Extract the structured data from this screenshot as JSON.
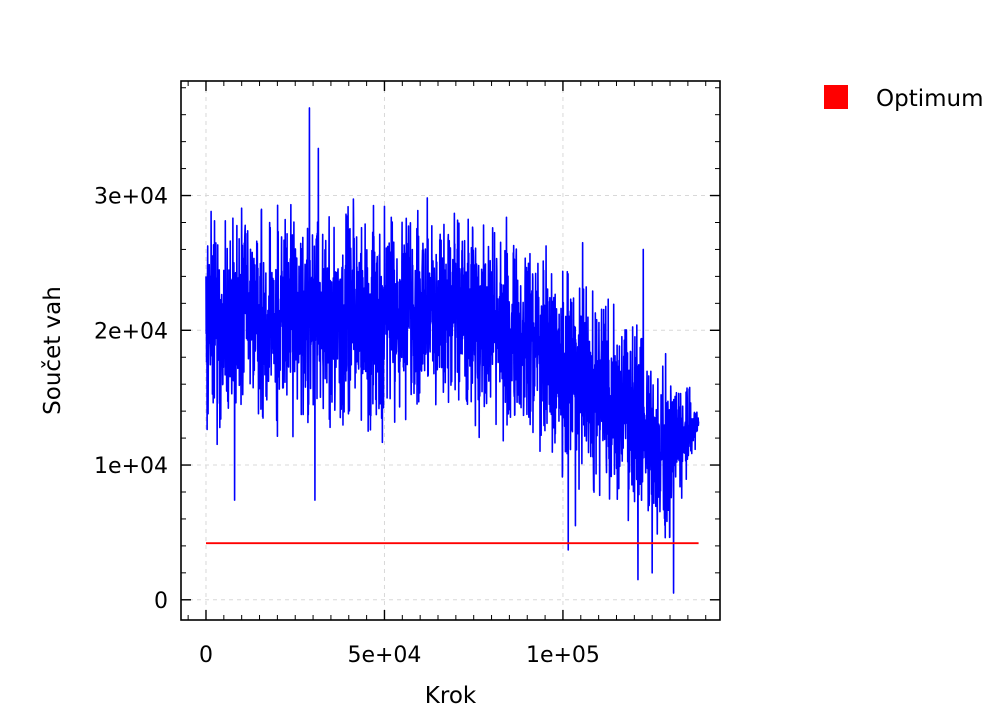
{
  "chart_data": {
    "type": "line",
    "xlabel": "Krok",
    "ylabel": "Součet vah",
    "xlim": [
      -7000,
      144000
    ],
    "ylim": [
      -1500,
      38500
    ],
    "x_ticks": [
      0,
      50000,
      100000
    ],
    "x_tick_labels": [
      "0",
      "5e+04",
      "1e+05"
    ],
    "y_ticks": [
      0,
      10000,
      20000,
      30000
    ],
    "y_tick_labels": [
      "0",
      "1e+04",
      "2e+04",
      "3e+04"
    ],
    "grid": true,
    "legend_position": "top-right outside",
    "series": [
      {
        "color": "#0000ff",
        "description": "noisy trace",
        "x_range": [
          0,
          138000
        ],
        "envelope_x": [
          0,
          5000,
          10000,
          20000,
          30000,
          40000,
          50000,
          60000,
          70000,
          80000,
          90000,
          100000,
          105000,
          110000,
          115000,
          120000,
          125000,
          130000,
          135000,
          138000
        ],
        "envelope_low": [
          11000,
          11000,
          11500,
          11500,
          11000,
          11000,
          11500,
          12000,
          12000,
          11500,
          11000,
          8000,
          7000,
          6000,
          5000,
          4500,
          2500,
          2500,
          8500,
          12000
        ],
        "envelope_high": [
          29000,
          30000,
          30500,
          30000,
          31000,
          30000,
          31000,
          31000,
          30000,
          29000,
          28000,
          26000,
          25000,
          24500,
          24000,
          22000,
          19000,
          20000,
          17000,
          14500
        ],
        "center": [
          20000,
          21000,
          21000,
          20500,
          21000,
          20500,
          21000,
          21500,
          21000,
          20000,
          19500,
          17500,
          16500,
          15500,
          14500,
          13500,
          11000,
          11000,
          12500,
          13500
        ],
        "spikes": [
          {
            "x": 29000,
            "y": 36500
          },
          {
            "x": 31500,
            "y": 33500
          },
          {
            "x": 30500,
            "y": 7400
          },
          {
            "x": 8000,
            "y": 7400
          },
          {
            "x": 101500,
            "y": 3700
          },
          {
            "x": 103500,
            "y": 5500
          },
          {
            "x": 121000,
            "y": 1500
          },
          {
            "x": 131000,
            "y": 500
          },
          {
            "x": 125000,
            "y": 2000
          },
          {
            "x": 122500,
            "y": 26000
          },
          {
            "x": 105500,
            "y": 26500
          }
        ]
      },
      {
        "name": "Optimum",
        "color": "#ff0000",
        "x": [
          0,
          138000
        ],
        "y": [
          4200,
          4200
        ]
      }
    ],
    "legend": [
      {
        "label": "Optimum",
        "color": "#ff0000"
      }
    ]
  }
}
